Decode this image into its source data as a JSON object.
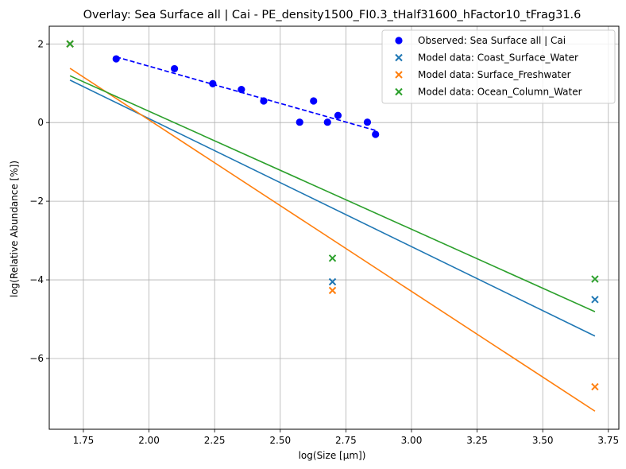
{
  "chart_data": {
    "type": "scatter",
    "title": "Overlay: Sea Surface all | Cai - PE_density1500_FI0.3_tHalf31600_hFactor10_tFrag31.6",
    "xlabel": "log(Size [µm])",
    "ylabel": "log(Relative Abundance [%])",
    "xlim": [
      1.62,
      3.79
    ],
    "ylim": [
      -7.8,
      2.45
    ],
    "xticks": [
      1.75,
      2.0,
      2.25,
      2.5,
      2.75,
      3.0,
      3.25,
      3.5,
      3.75
    ],
    "xtick_labels": [
      "1.75",
      "2.00",
      "2.25",
      "2.50",
      "2.75",
      "3.00",
      "3.25",
      "3.50",
      "3.75"
    ],
    "yticks": [
      -6,
      -4,
      -2,
      0,
      2
    ],
    "ytick_labels": [
      "−6",
      "−4",
      "−2",
      "0",
      "2"
    ],
    "grid": true,
    "legend_position": "top-right",
    "series": [
      {
        "name": "Observed: Sea Surface all | Cai",
        "kind": "scatter",
        "marker": "circle",
        "color": "#0000ff",
        "points": [
          [
            1.875,
            1.62
          ],
          [
            2.097,
            1.37
          ],
          [
            2.243,
            0.99
          ],
          [
            2.352,
            0.84
          ],
          [
            2.437,
            0.55
          ],
          [
            2.574,
            0.01
          ],
          [
            2.627,
            0.55
          ],
          [
            2.68,
            0.01
          ],
          [
            2.72,
            0.18
          ],
          [
            2.832,
            0.01
          ],
          [
            2.863,
            -0.3
          ]
        ]
      },
      {
        "name": "Model data: Coast_Surface_Water",
        "kind": "scatter",
        "marker": "x",
        "color": "#1f77b4",
        "points": [
          [
            1.699,
            2.0
          ],
          [
            2.699,
            -4.05
          ],
          [
            3.699,
            -4.5
          ]
        ]
      },
      {
        "name": "Model data: Surface_Freshwater",
        "kind": "scatter",
        "marker": "x",
        "color": "#ff7f0e",
        "points": [
          [
            1.699,
            2.0
          ],
          [
            2.699,
            -4.27
          ],
          [
            3.699,
            -6.72
          ]
        ]
      },
      {
        "name": "Model data: Ocean_Column_Water",
        "kind": "scatter",
        "marker": "x",
        "color": "#2ca02c",
        "points": [
          [
            1.699,
            2.0
          ],
          [
            2.699,
            -3.45
          ],
          [
            3.699,
            -3.98
          ]
        ]
      }
    ],
    "fit_lines": [
      {
        "kind": "line",
        "style": "dashed",
        "color": "#0000ff",
        "points": [
          [
            1.875,
            1.67
          ],
          [
            2.863,
            -0.2
          ]
        ]
      },
      {
        "kind": "line",
        "style": "solid",
        "color": "#1f77b4",
        "points": [
          [
            1.699,
            1.08
          ],
          [
            3.699,
            -5.43
          ]
        ]
      },
      {
        "kind": "line",
        "style": "solid",
        "color": "#ff7f0e",
        "points": [
          [
            1.699,
            1.38
          ],
          [
            3.699,
            -7.34
          ]
        ]
      },
      {
        "kind": "line",
        "style": "solid",
        "color": "#2ca02c",
        "points": [
          [
            1.699,
            1.19
          ],
          [
            3.699,
            -4.81
          ]
        ]
      }
    ]
  }
}
